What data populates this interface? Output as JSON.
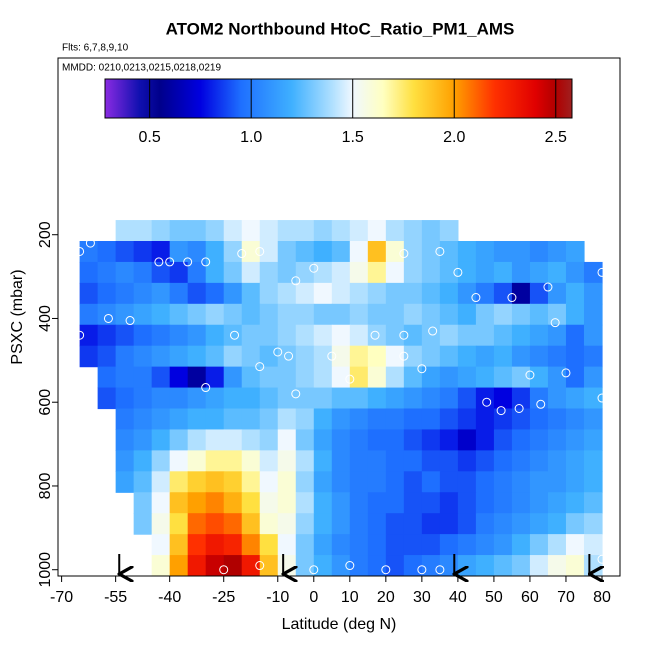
{
  "chart_data": {
    "type": "heatmap",
    "title": "ATOM2 Northbound HtoC_Ratio_PM1_AMS",
    "subtitle": "Flts: 6,7,8,9,10",
    "annotation": "MMDD: 0210,0213,0215,0218,0219",
    "xlabel": "Latitude (deg N)",
    "ylabel": "PSXC (mbar)",
    "xlim": [
      -71,
      85
    ],
    "ylim": [
      1015,
      -222
    ],
    "xticks": [
      -70,
      -55,
      -40,
      -25,
      -10,
      0,
      10,
      20,
      30,
      40,
      50,
      60,
      70,
      80
    ],
    "yticks": [
      200,
      400,
      600,
      800,
      1000
    ],
    "clim": [
      0.28,
      2.58
    ],
    "cticks": [
      0.5,
      {
        "value": 1,
        "label": "1.0"
      },
      1.5,
      {
        "value": 2,
        "label": "2.0"
      },
      2.5
    ],
    "colorscale": [
      [
        0.28,
        "#8a2be2"
      ],
      [
        0.45,
        "#1010b0"
      ],
      [
        0.55,
        "#00008b"
      ],
      [
        0.75,
        "#0000e0"
      ],
      [
        0.95,
        "#1e6fff"
      ],
      [
        1.2,
        "#3fb0ff"
      ],
      [
        1.4,
        "#b0e0ff"
      ],
      [
        1.5,
        "#f0f8ff"
      ],
      [
        1.65,
        "#ffffc0"
      ],
      [
        1.8,
        "#ffe040"
      ],
      [
        2.0,
        "#ffa000"
      ],
      [
        2.2,
        "#ff3000"
      ],
      [
        2.4,
        "#e00000"
      ],
      [
        2.5,
        "#b00000"
      ],
      [
        2.58,
        "#a02020"
      ]
    ],
    "lat_edges": [
      -65,
      -60,
      -55,
      -50,
      -45,
      -40,
      -35,
      -30,
      -25,
      -20,
      -15,
      -10,
      -5,
      0,
      5,
      10,
      15,
      20,
      25,
      30,
      35,
      40,
      45,
      50,
      55,
      60,
      65,
      70,
      75,
      80
    ],
    "pressure_edges": [
      165,
      215,
      265,
      315,
      365,
      415,
      465,
      515,
      565,
      615,
      665,
      715,
      765,
      815,
      865,
      915,
      965,
      1015
    ],
    "values": [
      [
        null,
        null,
        1.4,
        1.4,
        1.35,
        1.3,
        1.3,
        1.35,
        1.45,
        1.5,
        1.45,
        1.4,
        1.4,
        1.35,
        1.4,
        1.45,
        1.5,
        1.4,
        1.35,
        1.3,
        1.35,
        null,
        null,
        null,
        null,
        null,
        null,
        null,
        null
      ],
      [
        1.0,
        0.95,
        0.9,
        0.85,
        0.8,
        1.1,
        1.05,
        1.2,
        1.35,
        1.6,
        1.45,
        1.3,
        1.25,
        1.2,
        1.25,
        1.5,
        1.9,
        1.6,
        1.35,
        1.3,
        1.25,
        1.2,
        1.15,
        1.1,
        1.1,
        1.05,
        1.1,
        1.15,
        null
      ],
      [
        0.95,
        1.0,
        1.05,
        1.0,
        0.9,
        0.85,
        1.0,
        1.2,
        1.3,
        1.45,
        1.35,
        1.3,
        1.35,
        1.4,
        1.45,
        1.55,
        1.7,
        1.5,
        1.35,
        1.3,
        1.25,
        1.2,
        1.15,
        1.2,
        1.1,
        1.15,
        1.2,
        1.1,
        1.0
      ],
      [
        0.9,
        0.95,
        1.0,
        1.05,
        1.1,
        1.0,
        0.9,
        0.95,
        1.1,
        1.25,
        1.35,
        1.4,
        1.45,
        1.5,
        1.45,
        1.4,
        1.35,
        1.3,
        1.3,
        1.25,
        1.2,
        1.1,
        1.0,
        0.9,
        0.6,
        0.9,
        1.1,
        1.2,
        1.1
      ],
      [
        1.0,
        1.05,
        1.1,
        1.15,
        1.2,
        1.25,
        1.3,
        1.35,
        1.3,
        1.25,
        1.3,
        1.35,
        1.35,
        1.3,
        1.3,
        1.35,
        1.3,
        1.3,
        1.35,
        1.3,
        1.25,
        1.2,
        1.3,
        1.35,
        1.3,
        1.25,
        1.3,
        1.2,
        1.1
      ],
      [
        0.8,
        0.85,
        0.9,
        0.95,
        1.0,
        1.05,
        1.1,
        1.2,
        1.25,
        1.3,
        1.3,
        1.35,
        1.4,
        1.45,
        1.5,
        1.45,
        1.35,
        1.3,
        1.25,
        1.3,
        1.35,
        1.3,
        1.3,
        1.25,
        1.2,
        1.15,
        1.1,
        0.95,
        1.1
      ],
      [
        0.85,
        0.9,
        1.0,
        1.05,
        1.1,
        1.15,
        1.2,
        1.25,
        1.35,
        1.3,
        1.25,
        1.3,
        1.35,
        1.4,
        1.55,
        1.7,
        1.65,
        1.5,
        1.35,
        1.3,
        1.25,
        1.2,
        1.15,
        1.2,
        1.1,
        1.05,
        1.0,
        0.95,
        1.0
      ],
      [
        null,
        0.95,
        1.0,
        1.0,
        0.9,
        0.75,
        0.6,
        0.8,
        1.1,
        1.25,
        1.3,
        1.3,
        1.35,
        1.4,
        1.5,
        1.75,
        1.6,
        1.4,
        1.25,
        1.15,
        1.1,
        1.15,
        1.2,
        1.25,
        1.3,
        1.2,
        1.1,
        0.95,
        1.1
      ],
      [
        null,
        0.9,
        0.95,
        1.0,
        1.05,
        1.05,
        1.1,
        1.15,
        1.2,
        1.2,
        1.25,
        1.3,
        1.3,
        1.3,
        1.25,
        1.25,
        1.2,
        1.15,
        1.1,
        1.05,
        1.0,
        0.9,
        0.8,
        0.75,
        0.85,
        1.0,
        1.1,
        1.15,
        1.2
      ],
      [
        null,
        null,
        1.0,
        1.05,
        1.1,
        1.15,
        1.2,
        1.2,
        1.25,
        1.25,
        1.3,
        1.4,
        1.35,
        1.2,
        1.1,
        1.05,
        1.0,
        1.0,
        0.95,
        0.95,
        0.9,
        0.85,
        0.8,
        0.85,
        0.9,
        0.95,
        1.0,
        1.05,
        1.1
      ],
      [
        null,
        null,
        1.05,
        1.1,
        1.2,
        1.3,
        1.4,
        1.45,
        1.45,
        1.4,
        1.35,
        1.5,
        1.3,
        1.15,
        1.05,
        1.0,
        0.95,
        0.95,
        0.9,
        0.85,
        0.8,
        0.7,
        0.8,
        0.9,
        0.95,
        1.0,
        1.05,
        1.1,
        1.15
      ],
      [
        null,
        null,
        1.1,
        1.2,
        1.35,
        1.5,
        1.6,
        1.7,
        1.7,
        1.6,
        1.45,
        1.55,
        1.4,
        1.2,
        1.05,
        1.0,
        1.0,
        0.95,
        0.95,
        0.9,
        0.9,
        0.85,
        0.9,
        0.95,
        1.0,
        1.05,
        1.1,
        1.15,
        1.2
      ],
      [
        null,
        null,
        1.15,
        1.25,
        1.45,
        1.75,
        1.85,
        1.9,
        1.85,
        1.7,
        1.5,
        1.6,
        1.35,
        1.15,
        1.05,
        1.0,
        1.0,
        0.95,
        0.9,
        0.95,
        0.9,
        0.9,
        0.95,
        1.0,
        1.05,
        1.1,
        1.1,
        1.15,
        1.2
      ],
      [
        null,
        null,
        null,
        1.3,
        1.5,
        1.9,
        2.0,
        2.05,
        1.95,
        1.8,
        1.55,
        1.6,
        1.4,
        1.2,
        1.1,
        1.0,
        0.95,
        0.95,
        0.9,
        0.9,
        0.85,
        0.9,
        0.95,
        1.0,
        1.05,
        1.1,
        1.15,
        1.2,
        1.25
      ],
      [
        null,
        null,
        null,
        1.3,
        1.55,
        1.8,
        2.1,
        2.15,
        2.1,
        1.9,
        1.6,
        1.55,
        1.35,
        1.2,
        1.1,
        1.0,
        0.95,
        0.9,
        0.9,
        0.85,
        0.85,
        0.9,
        1.0,
        1.05,
        1.1,
        1.15,
        1.2,
        1.3,
        1.35
      ],
      [
        null,
        null,
        null,
        null,
        1.5,
        1.9,
        2.2,
        2.3,
        2.25,
        2.05,
        1.8,
        1.5,
        1.3,
        1.15,
        1.05,
        1.0,
        0.95,
        0.9,
        0.9,
        0.9,
        0.95,
        1.0,
        1.05,
        1.1,
        1.2,
        1.3,
        1.4,
        1.5,
        1.45
      ],
      [
        null,
        null,
        null,
        null,
        1.6,
        2.0,
        2.3,
        2.45,
        2.5,
        2.3,
        1.9,
        1.55,
        1.3,
        1.2,
        1.1,
        1.0,
        0.95,
        0.9,
        0.95,
        1.0,
        1.05,
        1.15,
        1.2,
        1.25,
        1.3,
        1.45,
        1.55,
        1.6,
        1.4
      ]
    ],
    "points": {
      "lat": [
        -65,
        -62,
        -43,
        -40,
        -35,
        -30,
        -20,
        -15,
        -5,
        0,
        25,
        35,
        40,
        45,
        55,
        65,
        -57,
        -51,
        -65,
        -30,
        -15,
        -7,
        5,
        10,
        30,
        60,
        70,
        -5,
        48,
        52,
        57,
        63,
        80,
        -25,
        -15,
        0,
        10,
        20,
        30,
        35,
        80,
        -10,
        17,
        25,
        33,
        25,
        -22,
        67,
        80
      ],
      "pressure": [
        240,
        220,
        265,
        265,
        265,
        265,
        245,
        240,
        310,
        280,
        245,
        240,
        290,
        350,
        350,
        325,
        400,
        405,
        440,
        565,
        515,
        490,
        490,
        545,
        520,
        535,
        530,
        580,
        600,
        620,
        615,
        605,
        590,
        1000,
        990,
        1000,
        990,
        1000,
        1000,
        1000,
        975,
        480,
        440,
        440,
        430,
        490,
        440,
        410,
        290
      ]
    },
    "markers_lat": [
      -54,
      -8.5,
      39,
      76.5
    ]
  }
}
